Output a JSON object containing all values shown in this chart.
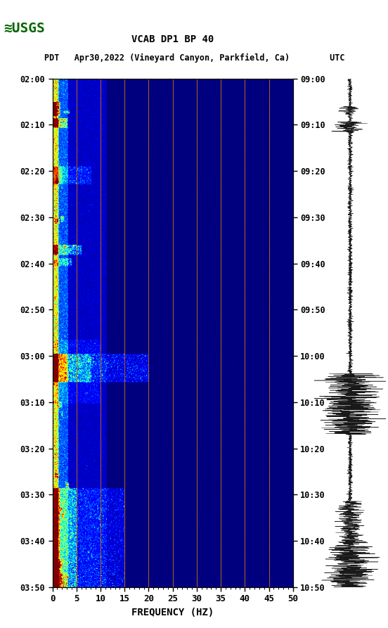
{
  "title_line1": "VCAB DP1 BP 40",
  "title_line2_pdt": "PDT   Apr30,2022 (Vineyard Canyon, Parkfield, Ca)        UTC",
  "xlabel": "FREQUENCY (HZ)",
  "freq_min": 0,
  "freq_max": 50,
  "left_yticks": [
    "02:00",
    "02:10",
    "02:20",
    "02:30",
    "02:40",
    "02:50",
    "03:00",
    "03:10",
    "03:20",
    "03:30",
    "03:40",
    "03:50"
  ],
  "right_yticks": [
    "09:00",
    "09:10",
    "09:20",
    "09:30",
    "09:40",
    "09:50",
    "10:00",
    "10:10",
    "10:20",
    "10:30",
    "10:40",
    "10:50"
  ],
  "xticks": [
    0,
    5,
    10,
    15,
    20,
    25,
    30,
    35,
    40,
    45,
    50
  ],
  "vertical_lines_x": [
    5,
    10,
    15,
    20,
    25,
    30,
    35,
    40,
    45
  ],
  "background_color": "#ffffff",
  "colormap": "jet",
  "fig_width": 5.52,
  "fig_height": 8.93,
  "usgs_color": "#006600"
}
